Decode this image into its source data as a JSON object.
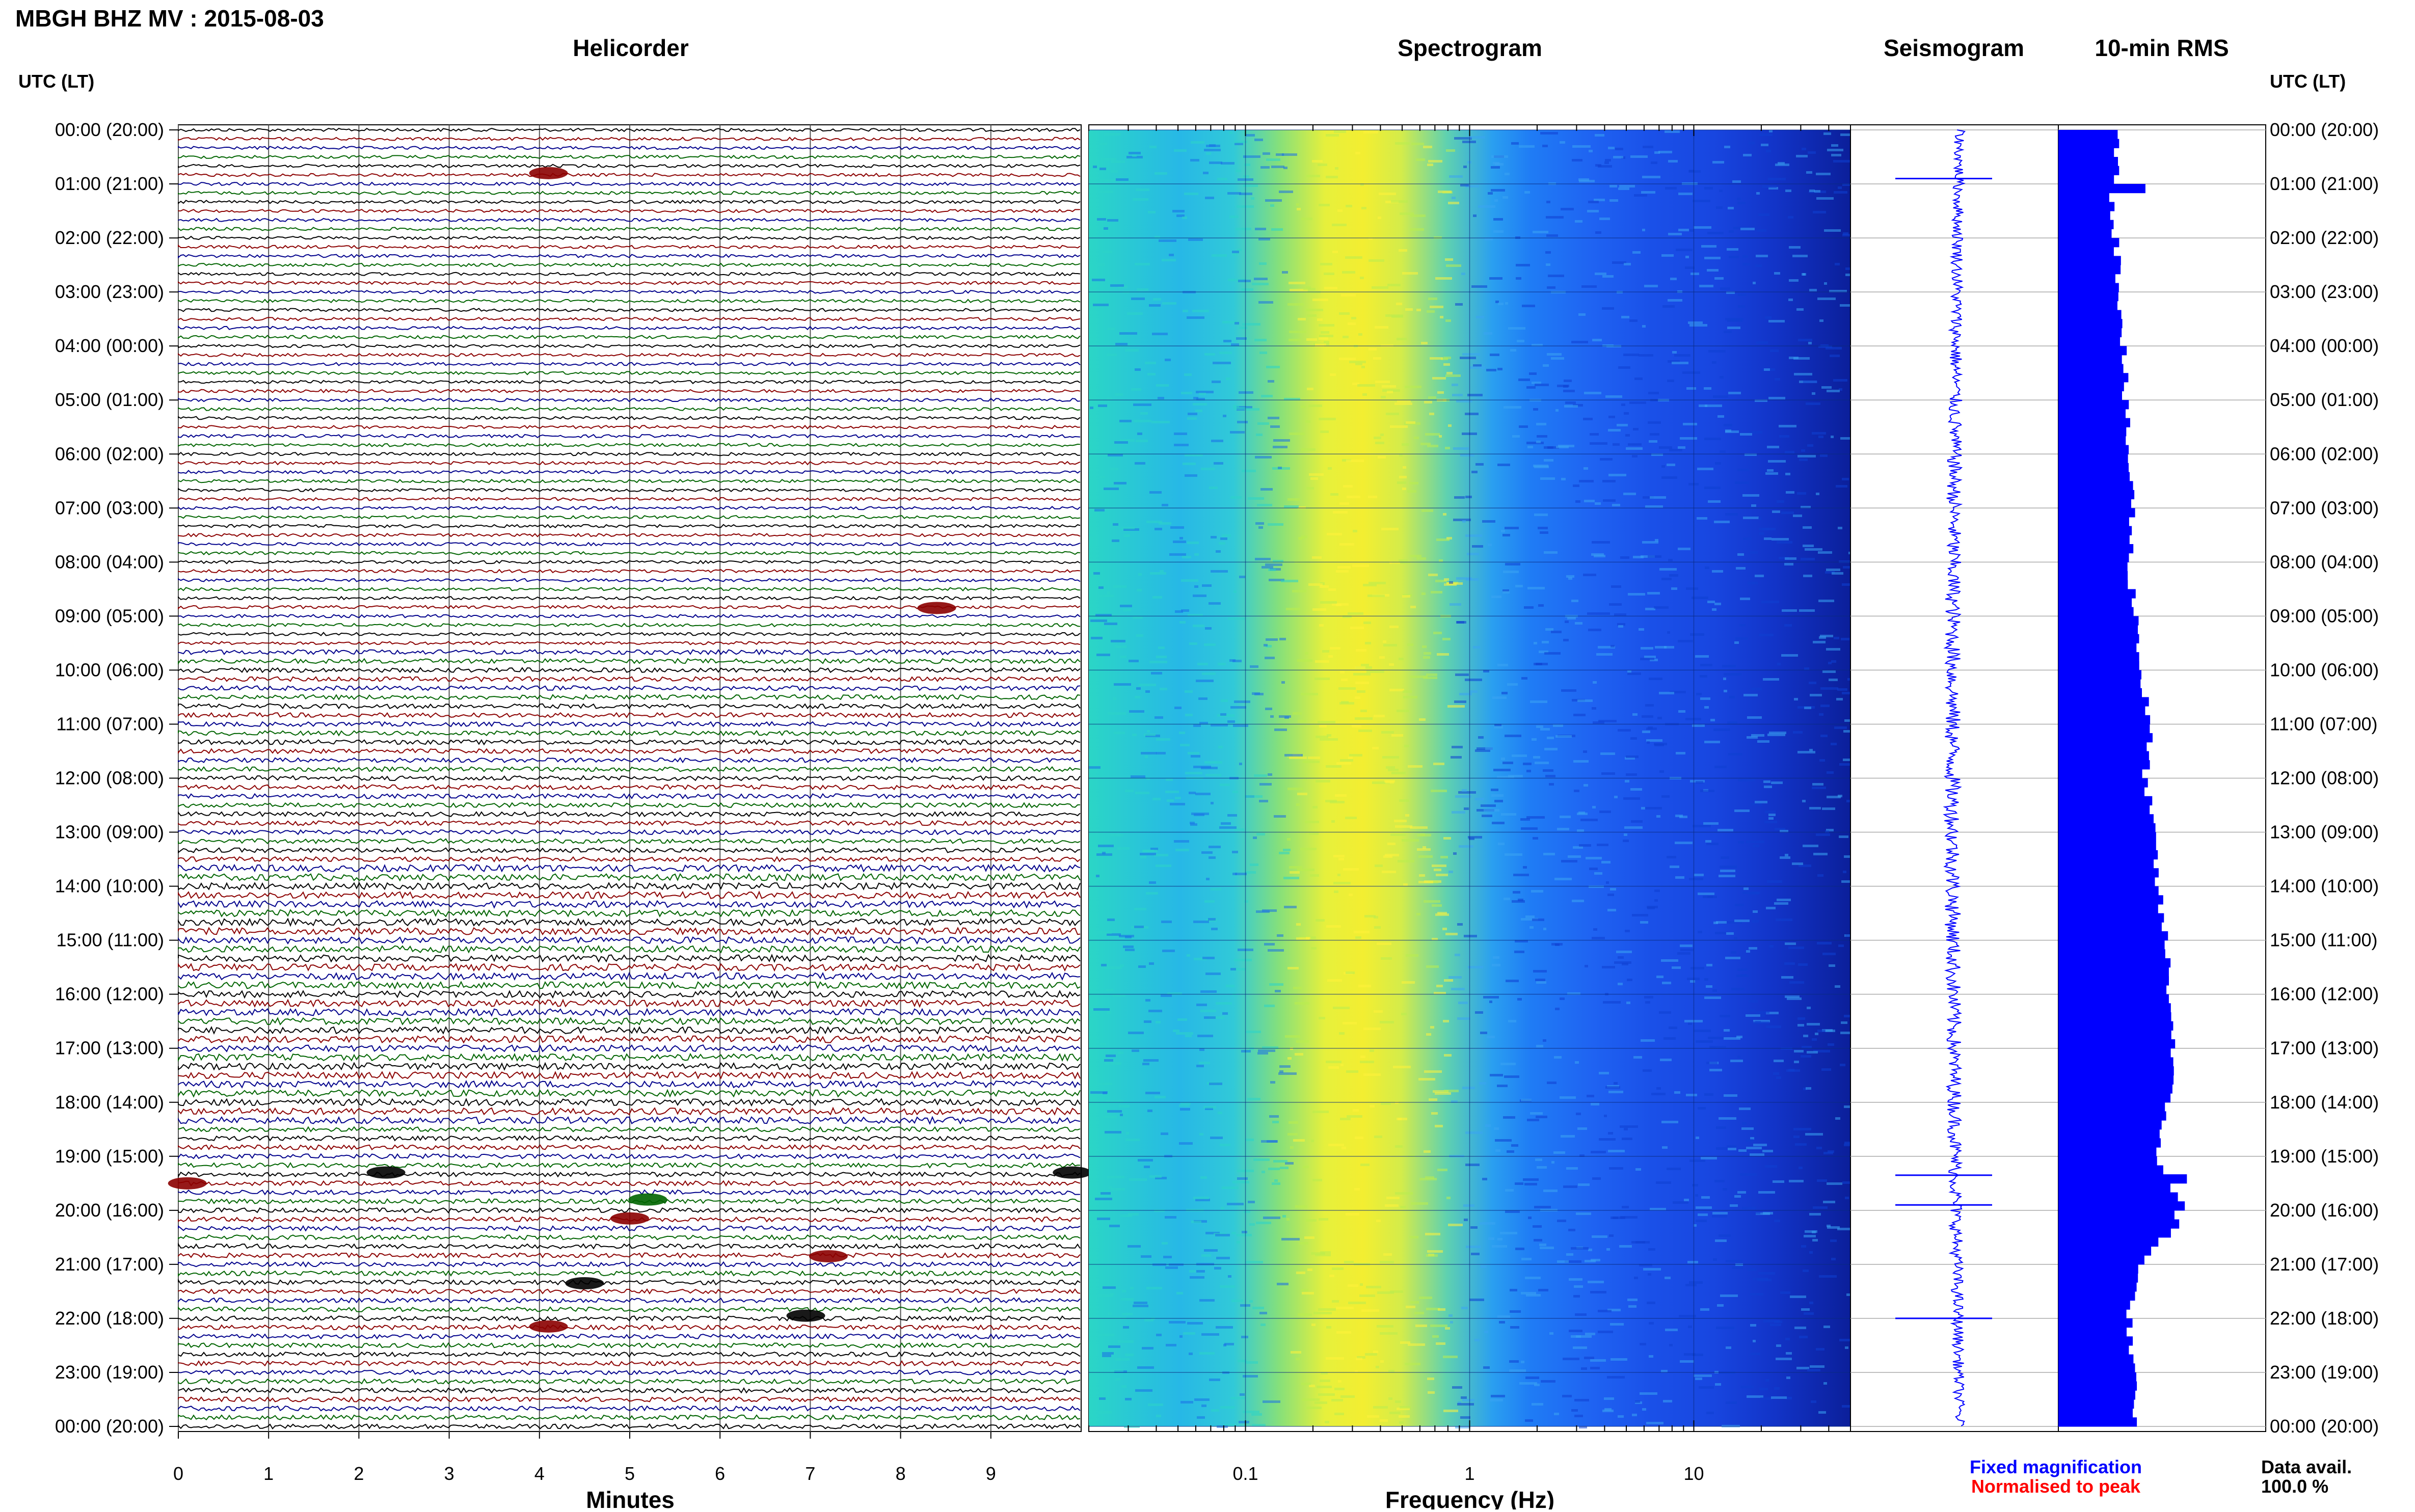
{
  "header": {
    "title": "MBGH BHZ MV : 2015-08-03",
    "left_axis_title": "UTC (LT)",
    "right_axis_title": "UTC (LT)"
  },
  "panels": {
    "helicorder": "Helicorder",
    "spectrogram": "Spectrogram",
    "seismogram": "Seismogram",
    "rms": "10-min RMS"
  },
  "time_labels": [
    "00:00 (20:00)",
    "01:00 (21:00)",
    "02:00 (22:00)",
    "03:00 (23:00)",
    "04:00 (00:00)",
    "05:00 (01:00)",
    "06:00 (02:00)",
    "07:00 (03:00)",
    "08:00 (04:00)",
    "09:00 (05:00)",
    "10:00 (06:00)",
    "11:00 (07:00)",
    "12:00 (08:00)",
    "13:00 (09:00)",
    "14:00 (10:00)",
    "15:00 (11:00)",
    "16:00 (12:00)",
    "17:00 (13:00)",
    "18:00 (14:00)",
    "19:00 (15:00)",
    "20:00 (16:00)",
    "21:00 (17:00)",
    "22:00 (18:00)",
    "23:00 (19:00)",
    "00:00 (20:00)"
  ],
  "minutes_axis": {
    "label": "Minutes",
    "ticks": [
      "0",
      "1",
      "2",
      "3",
      "4",
      "5",
      "6",
      "7",
      "8",
      "9"
    ]
  },
  "frequency_axis": {
    "label": "Frequency (Hz)",
    "ticks": [
      "0.1",
      "1",
      "10"
    ],
    "scale": "log",
    "range_hz": [
      0.02,
      50
    ]
  },
  "legend": {
    "fixed": "Fixed magnification",
    "normalised": "Normalised to peak",
    "fixed_color": "#0000ff",
    "normalised_color": "#ff0000"
  },
  "data_availability": {
    "label": "Data avail.",
    "value": "100.0 %"
  },
  "colors": {
    "trace_cycle": [
      "#000000",
      "#8b0000",
      "#00008b",
      "#006400"
    ],
    "rms": "#0000ff",
    "seismogram": "#0000ff"
  },
  "chart_data": [
    {
      "type": "helicorder",
      "minutes_per_line": 10,
      "lines_per_hour": 6,
      "hours": 24,
      "x_range_minutes": [
        0,
        10
      ],
      "events": [
        {
          "hour": 0.8,
          "minute": 4.1,
          "color": "#8b0000"
        },
        {
          "hour": 8.85,
          "minute": 8.4,
          "color": "#8b0000"
        },
        {
          "hour": 19.3,
          "minute": 2.3,
          "color": "#000000"
        },
        {
          "hour": 19.3,
          "minute": 9.9,
          "color": "#000000"
        },
        {
          "hour": 19.5,
          "minute": 0.1,
          "color": "#8b0000"
        },
        {
          "hour": 19.8,
          "minute": 5.2,
          "color": "#006400"
        },
        {
          "hour": 20.15,
          "minute": 5.0,
          "color": "#8b0000"
        },
        {
          "hour": 20.85,
          "minute": 7.2,
          "color": "#8b0000"
        },
        {
          "hour": 21.35,
          "minute": 4.5,
          "color": "#000000"
        },
        {
          "hour": 21.95,
          "minute": 6.95,
          "color": "#000000"
        },
        {
          "hour": 22.15,
          "minute": 4.1,
          "color": "#8b0000"
        }
      ]
    },
    {
      "type": "heatmap",
      "x_scale": "log",
      "xlim": [
        0.02,
        50
      ],
      "y_range_hours": [
        0,
        24
      ],
      "peak_band_hz": [
        0.2,
        0.7
      ]
    },
    {
      "type": "line",
      "x_label": "Seismogram",
      "y_range_hours": [
        0,
        24
      ],
      "note_spikes_hours": [
        0.9,
        19.35,
        19.9,
        22.0
      ]
    },
    {
      "type": "bar",
      "orientation": "horizontal",
      "bins_per_hour": 6,
      "y_range_hours": [
        0,
        24
      ],
      "hourly_values": [
        0.3,
        0.26,
        0.28,
        0.3,
        0.32,
        0.32,
        0.34,
        0.36,
        0.34,
        0.38,
        0.4,
        0.44,
        0.42,
        0.46,
        0.48,
        0.52,
        0.54,
        0.56,
        0.52,
        0.48,
        0.62,
        0.38,
        0.34,
        0.36,
        0.36
      ],
      "spikes": [
        {
          "hour": 0.95,
          "value": 0.42
        },
        {
          "hour": 19.35,
          "value": 0.62
        },
        {
          "hour": 19.95,
          "value": 0.56
        }
      ]
    }
  ]
}
